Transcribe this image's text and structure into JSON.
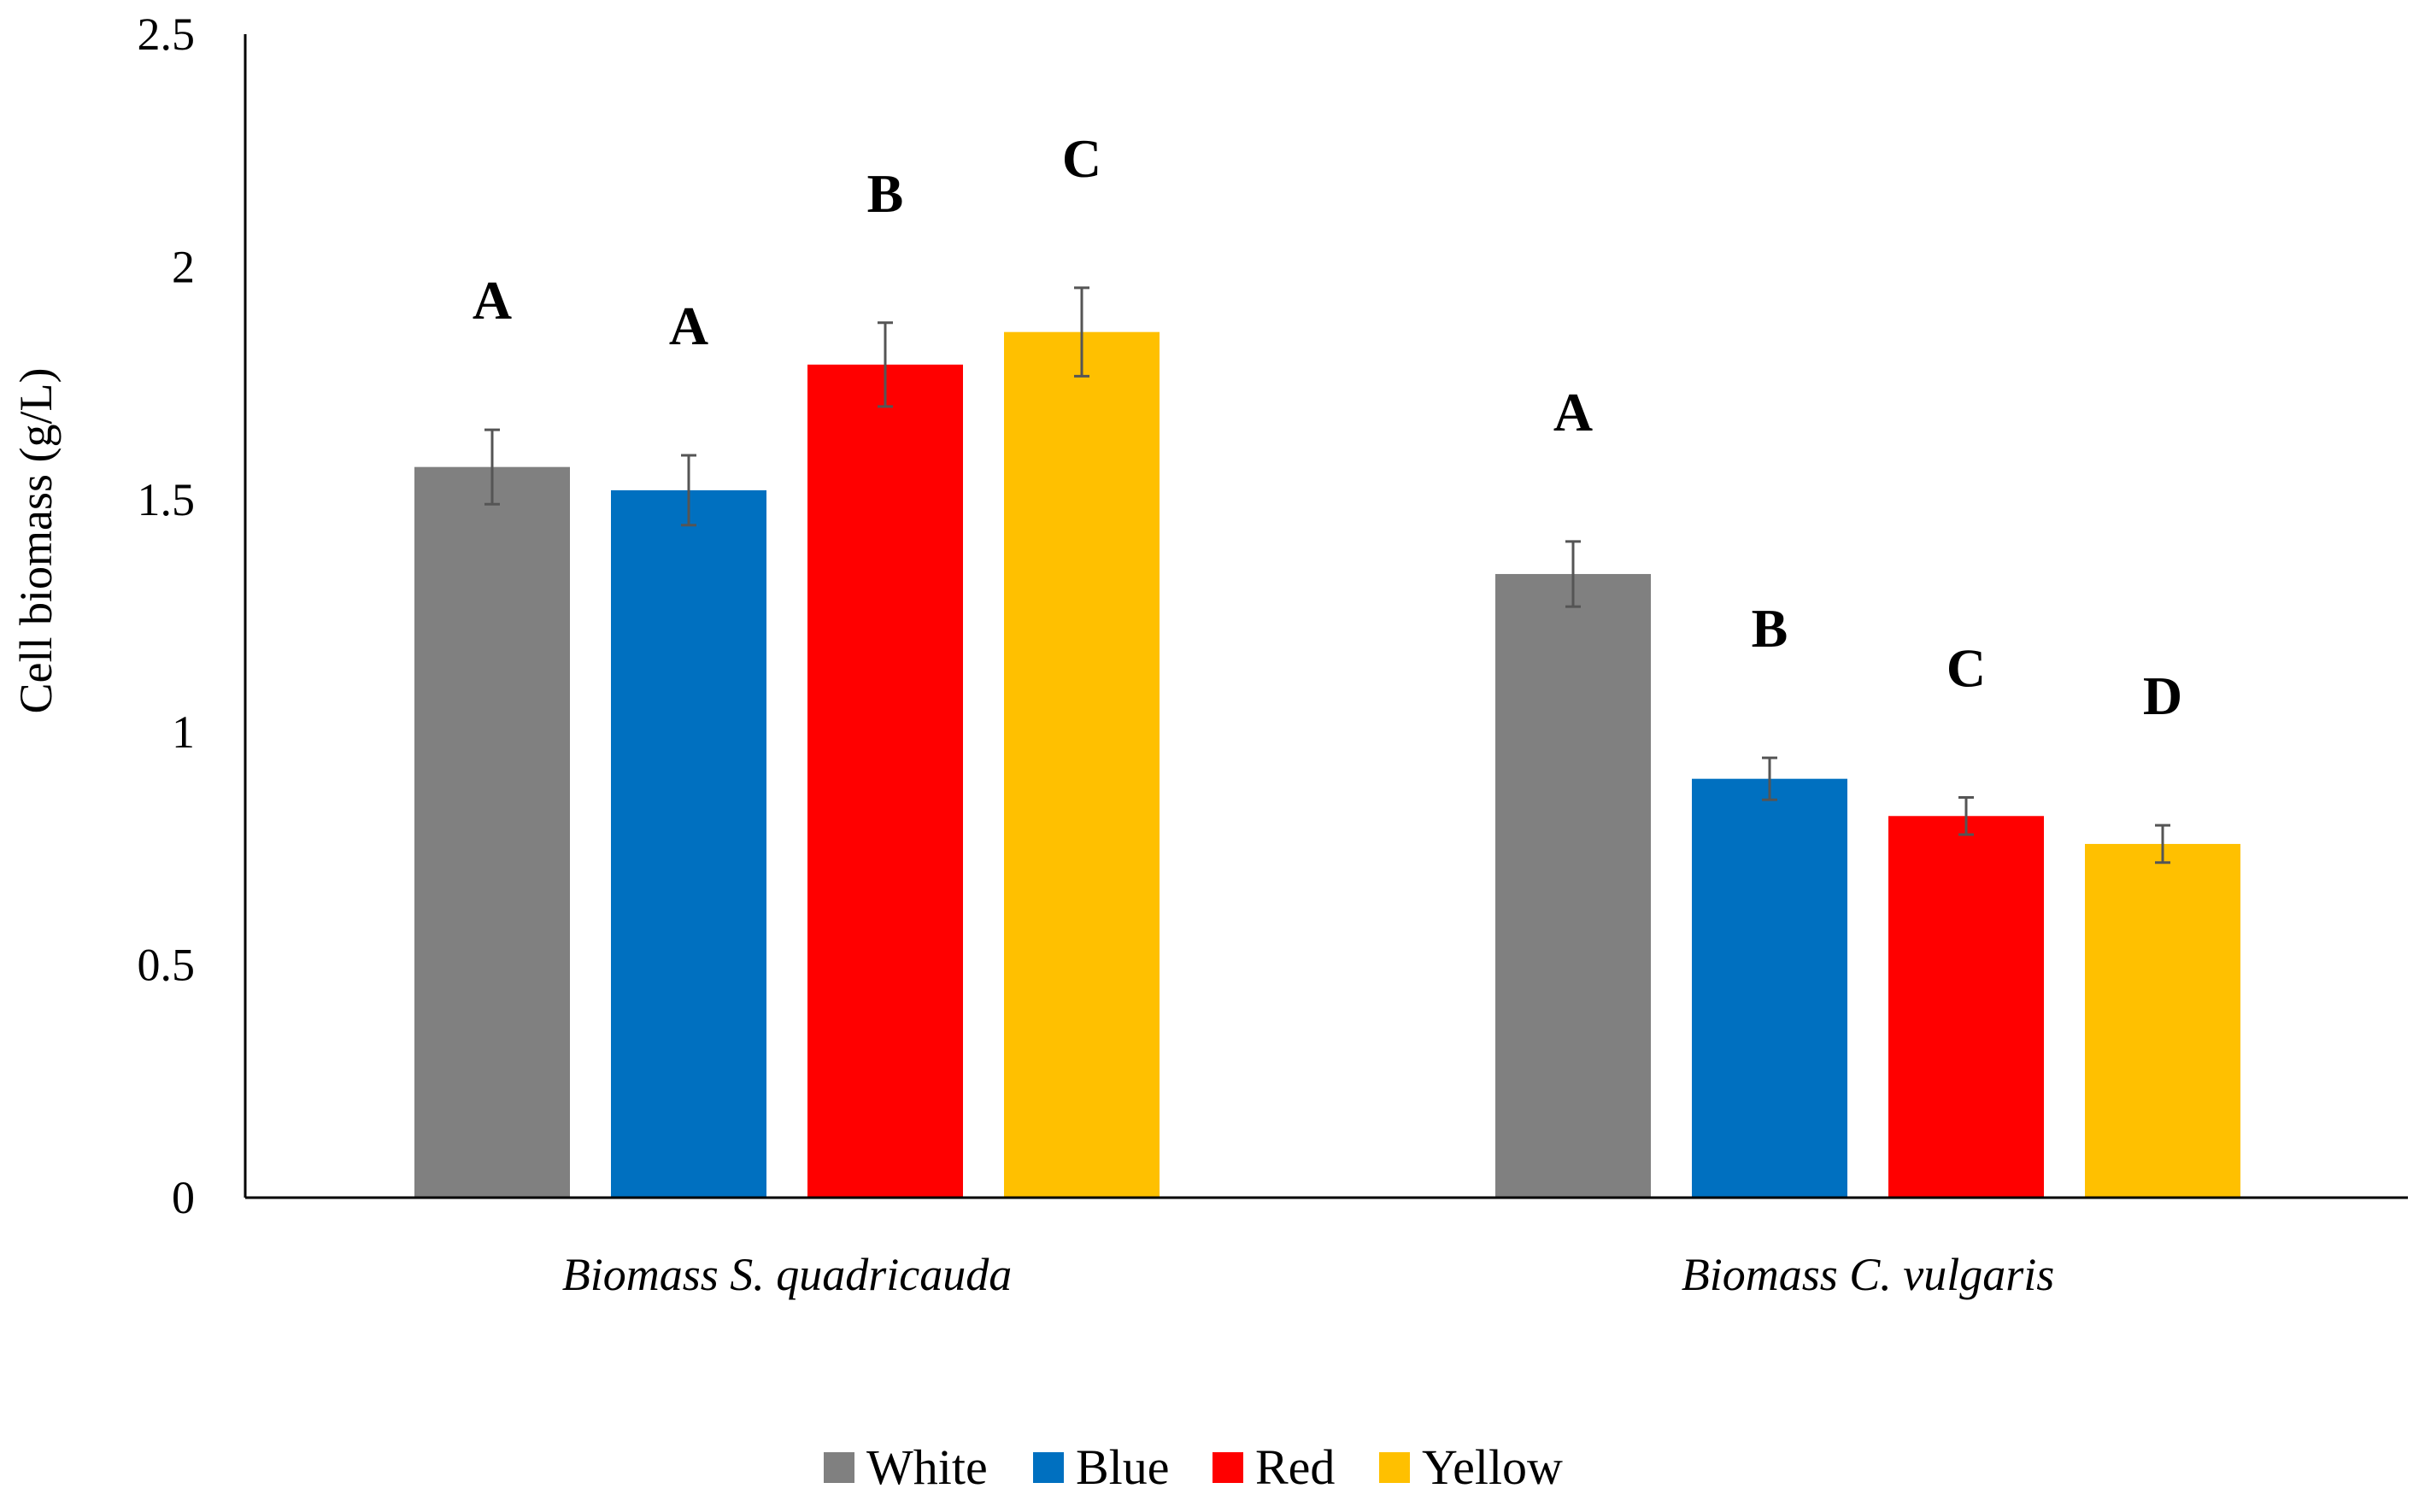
{
  "chart_data": {
    "type": "bar",
    "title": "",
    "xlabel": "",
    "ylabel": "Cell biomass (g/L)",
    "ylim": [
      0,
      2.5
    ],
    "yticks": [
      "0",
      "0.5",
      "1",
      "1.5",
      "2",
      "2.5"
    ],
    "ytick_values": [
      0,
      0.5,
      1,
      1.5,
      2,
      2.5
    ],
    "categories": [
      "Biomass S. quadricauda",
      "Biomass C. vulgaris"
    ],
    "series": [
      {
        "name": "White",
        "color": "#808080",
        "values": [
          1.57,
          1.34
        ],
        "errors": [
          0.08,
          0.07
        ],
        "labels": [
          "A",
          "A"
        ]
      },
      {
        "name": "Blue",
        "color": "#0070C0",
        "values": [
          1.52,
          0.9
        ],
        "errors": [
          0.075,
          0.045
        ],
        "labels": [
          "A",
          "B"
        ]
      },
      {
        "name": "Red",
        "color": "#FF0000",
        "values": [
          1.79,
          0.82
        ],
        "errors": [
          0.09,
          0.04
        ],
        "labels": [
          "B",
          "C"
        ]
      },
      {
        "name": "Yellow",
        "color": "#FFC000",
        "values": [
          1.86,
          0.76
        ],
        "errors": [
          0.095,
          0.04
        ],
        "labels": [
          "C",
          "D"
        ]
      }
    ],
    "legend_position": "bottom-center",
    "grid": false
  }
}
